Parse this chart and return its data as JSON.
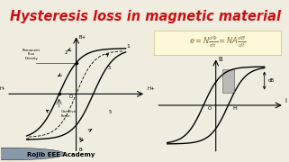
{
  "title": "Hysteresis loss in magnetic material",
  "title_color": "#cc1111",
  "title_bg": "#faf0d0",
  "main_bg": "#f0ede0",
  "watermark_text": "Rojib EEE Academy",
  "formula_bg": "#fdf8d8",
  "formula_border": "#cccc88"
}
